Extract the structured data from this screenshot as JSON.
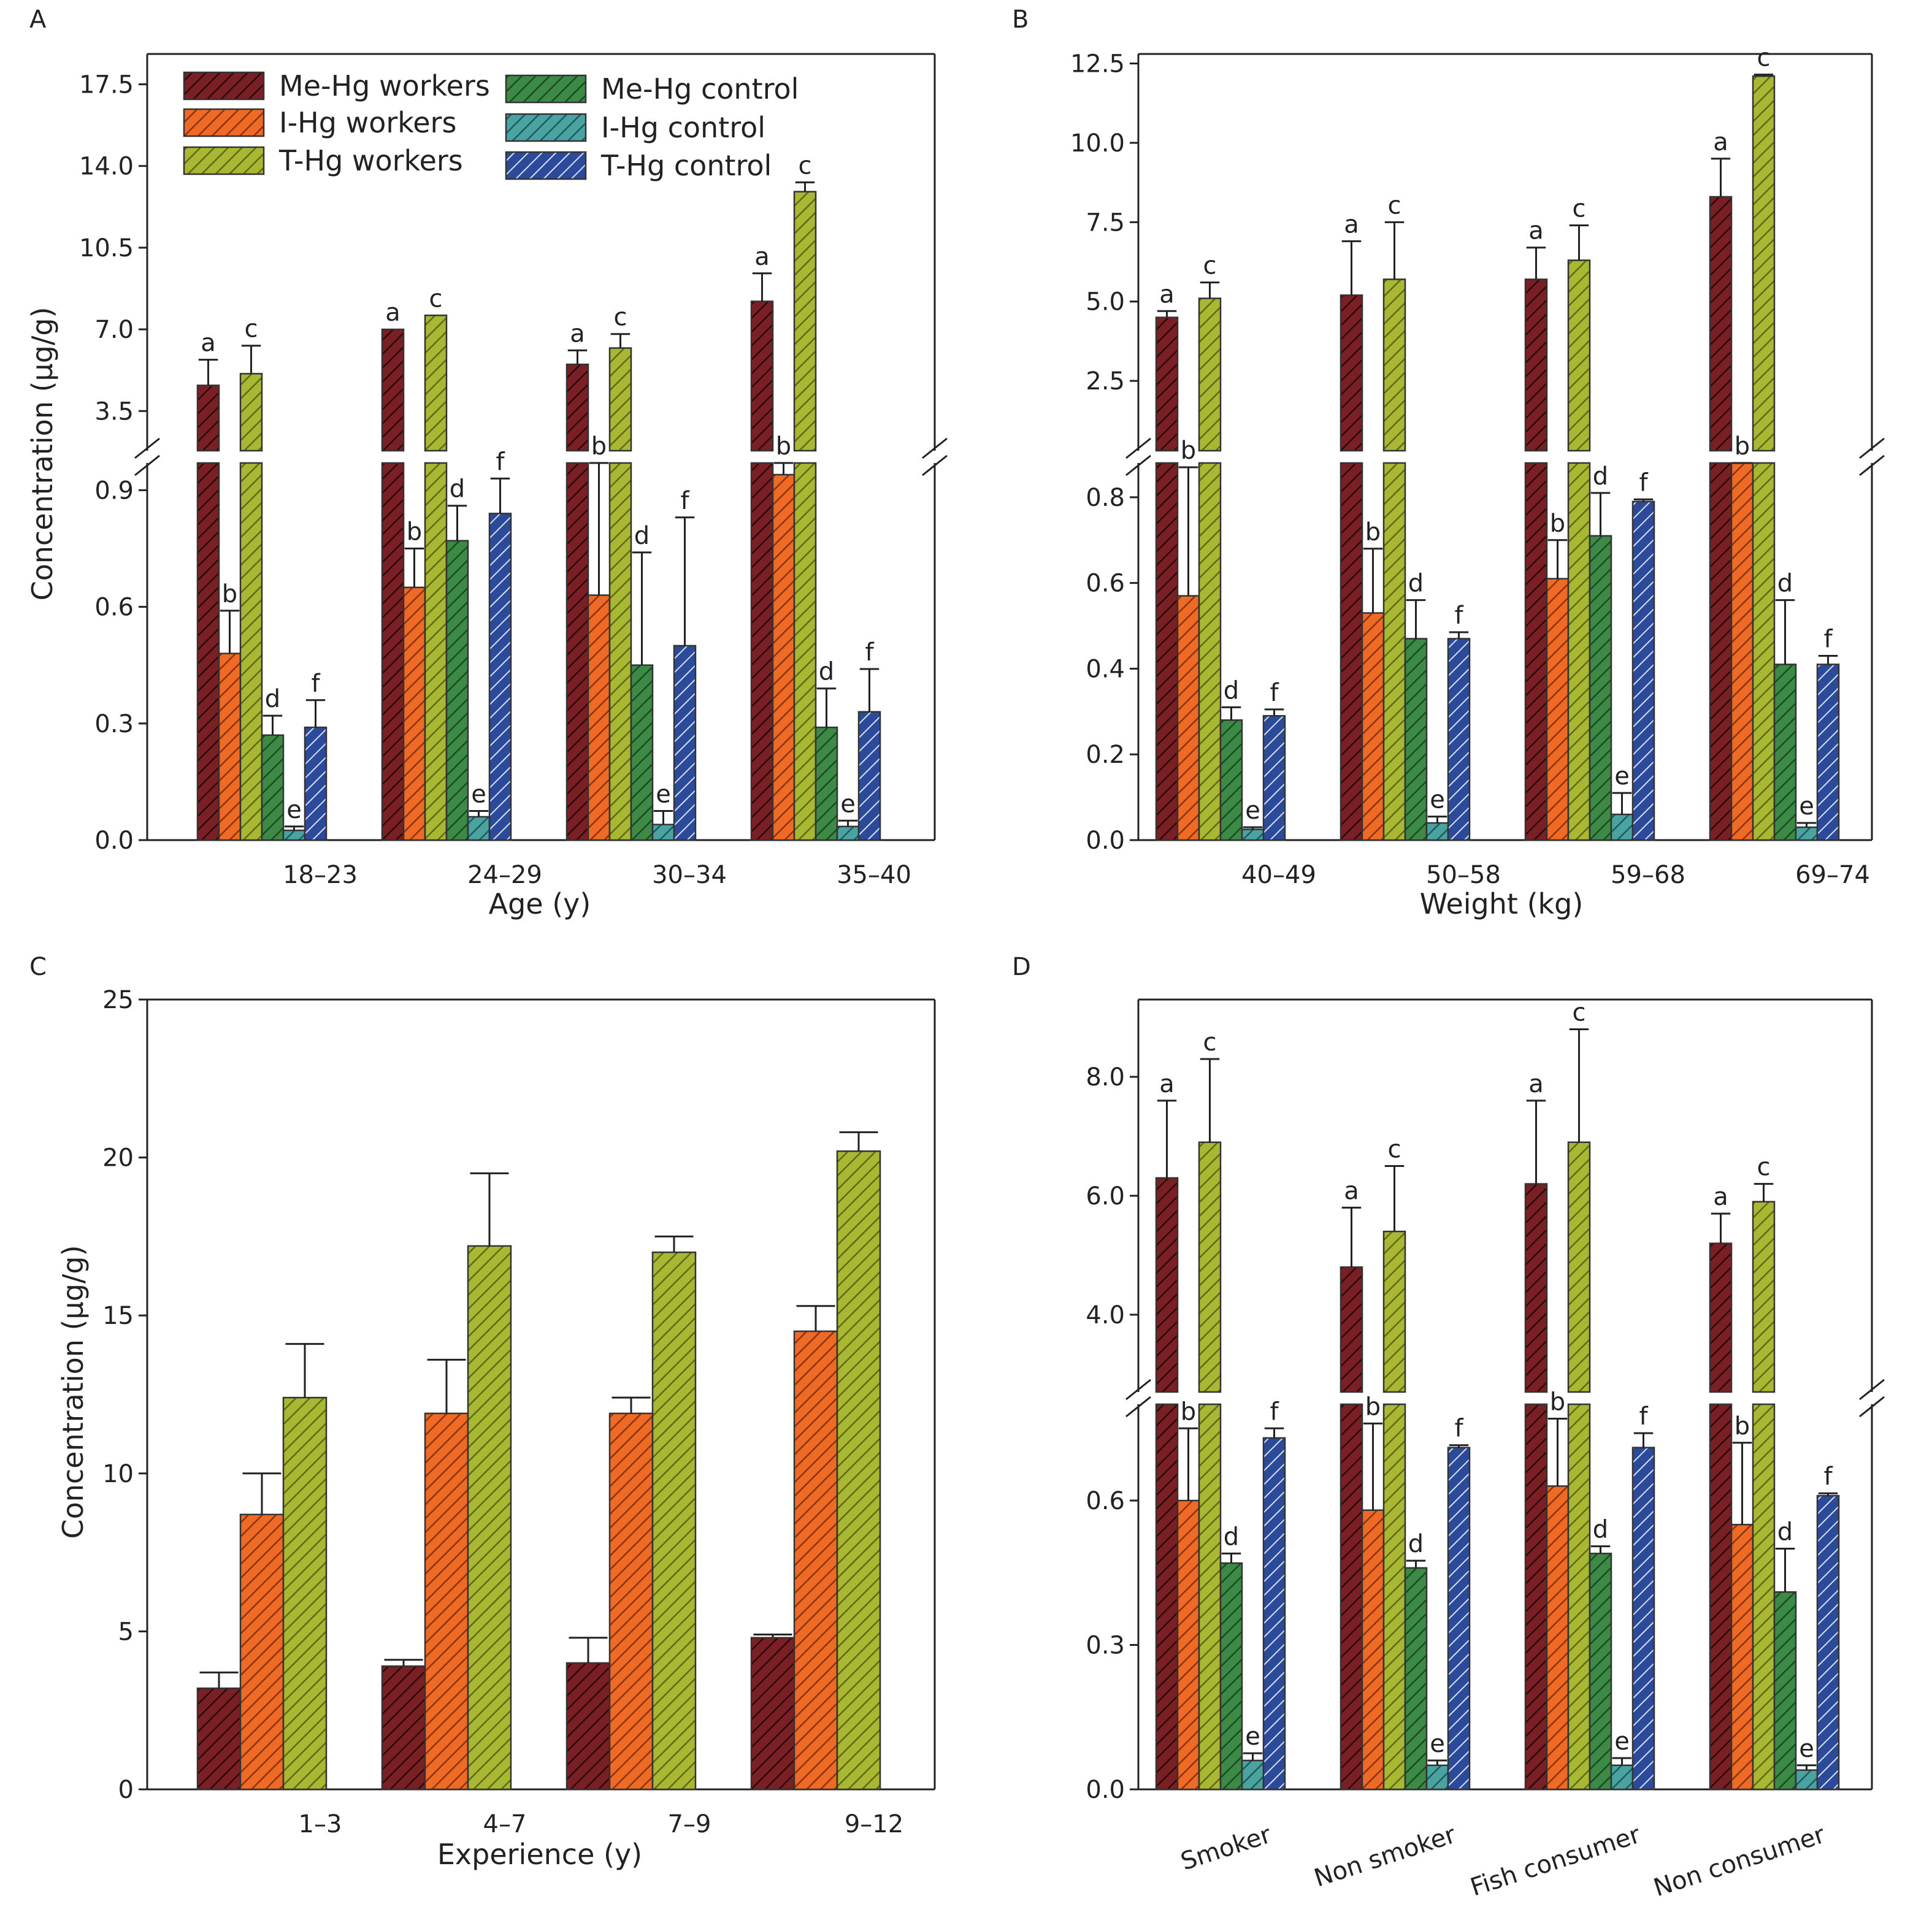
{
  "chart_data": [
    {
      "panel": "A",
      "type": "bar",
      "xlabel": "Age (y)",
      "ylabel": "Concentration (µg/g)",
      "categories": [
        "18–23",
        "24–29",
        "30–34",
        "35–40"
      ],
      "axis_break": true,
      "upper_ticks": [
        "3.5",
        "7.0",
        "10.5",
        "14.0",
        "17.5"
      ],
      "lower_ticks": [
        "0.0",
        "0.3",
        "0.6",
        "0.9"
      ],
      "series": [
        {
          "name": "Me-Hg workers",
          "color": "#7a1f24",
          "values": [
            4.6,
            7.0,
            5.5,
            8.2
          ],
          "errors": [
            1.1,
            0,
            0.6,
            1.2
          ],
          "letters": [
            "a",
            "a",
            "a",
            "a"
          ]
        },
        {
          "name": "I-Hg workers",
          "color": "#ee6a25",
          "values": [
            0.48,
            0.65,
            0.63,
            0.94
          ],
          "errors": [
            0.11,
            0.1,
            0.36,
            0.06
          ],
          "letters": [
            "b",
            "b",
            "b",
            "b"
          ]
        },
        {
          "name": "T-Hg workers",
          "color": "#a9b832",
          "values": [
            5.1,
            7.6,
            6.2,
            12.9
          ],
          "errors": [
            1.2,
            0,
            0.6,
            0.4
          ],
          "letters": [
            "c",
            "c",
            "c",
            "c"
          ]
        },
        {
          "name": "Me-Hg control",
          "color": "#3c8a46",
          "values": [
            0.27,
            0.77,
            0.45,
            0.29
          ],
          "errors": [
            0.05,
            0.09,
            0.29,
            0.1
          ],
          "letters": [
            "d",
            "d",
            "d",
            "d"
          ]
        },
        {
          "name": "I-Hg control",
          "color": "#4aa3a1",
          "values": [
            0.025,
            0.06,
            0.04,
            0.035
          ],
          "errors": [
            0.01,
            0.015,
            0.035,
            0.015
          ],
          "letters": [
            "e",
            "e",
            "e",
            "e"
          ]
        },
        {
          "name": "T-Hg control",
          "color": "#2c4a9a",
          "values": [
            0.29,
            0.84,
            0.5,
            0.33
          ],
          "errors": [
            0.07,
            0.09,
            0.33,
            0.11
          ],
          "letters": [
            "f",
            "f",
            "f",
            "f"
          ]
        }
      ]
    },
    {
      "panel": "B",
      "type": "bar",
      "xlabel": "Weight (kg)",
      "ylabel": "",
      "categories": [
        "40–49",
        "50–58",
        "59–68",
        "69–74"
      ],
      "axis_break": true,
      "upper_ticks": [
        "2.5",
        "5.0",
        "7.5",
        "10.0",
        "12.5"
      ],
      "lower_ticks": [
        "0.0",
        "0.2",
        "0.4",
        "0.6",
        "0.8"
      ],
      "series": [
        {
          "name": "Me-Hg workers",
          "values": [
            4.5,
            5.2,
            5.7,
            8.3
          ],
          "errors": [
            0.2,
            1.7,
            1.0,
            1.2
          ],
          "letters": [
            "a",
            "a",
            "a",
            "a"
          ]
        },
        {
          "name": "I-Hg workers",
          "values": [
            0.57,
            0.53,
            0.61,
            0.88
          ],
          "errors": [
            0.3,
            0.15,
            0.09,
            0.02
          ],
          "letters": [
            "b",
            "b",
            "b",
            "b"
          ]
        },
        {
          "name": "T-Hg workers",
          "values": [
            5.1,
            5.7,
            6.3,
            12.1
          ],
          "errors": [
            0.5,
            1.8,
            1.1,
            0.05
          ],
          "letters": [
            "c",
            "c",
            "c",
            "c"
          ]
        },
        {
          "name": "Me-Hg control",
          "values": [
            0.28,
            0.47,
            0.71,
            0.41
          ],
          "errors": [
            0.03,
            0.09,
            0.1,
            0.15
          ],
          "letters": [
            "d",
            "d",
            "d",
            "d"
          ]
        },
        {
          "name": "I-Hg control",
          "values": [
            0.025,
            0.04,
            0.06,
            0.03
          ],
          "errors": [
            0.005,
            0.015,
            0.05,
            0.01
          ],
          "letters": [
            "e",
            "e",
            "e",
            "e"
          ]
        },
        {
          "name": "T-Hg control",
          "values": [
            0.29,
            0.47,
            0.79,
            0.41
          ],
          "errors": [
            0.015,
            0.015,
            0.005,
            0.02
          ],
          "letters": [
            "f",
            "f",
            "f",
            "f"
          ]
        }
      ]
    },
    {
      "panel": "C",
      "type": "bar",
      "xlabel": "Experience (y)",
      "ylabel": "Concentration (µg/g)",
      "categories": [
        "1–3",
        "4–7",
        "7–9",
        "9–12"
      ],
      "axis_break": false,
      "ylim": [
        0,
        25
      ],
      "yticks": [
        "0",
        "5",
        "10",
        "15",
        "20",
        "25"
      ],
      "series": [
        {
          "name": "Me-Hg workers",
          "values": [
            3.2,
            3.9,
            4.0,
            4.8
          ],
          "errors": [
            0.5,
            0.2,
            0.8,
            0.1
          ]
        },
        {
          "name": "I-Hg workers",
          "values": [
            8.7,
            11.9,
            11.9,
            14.5
          ],
          "errors": [
            1.3,
            1.7,
            0.5,
            0.8
          ]
        },
        {
          "name": "T-Hg workers",
          "values": [
            12.4,
            17.2,
            17.0,
            20.2
          ],
          "errors": [
            1.7,
            2.3,
            0.5,
            0.6
          ]
        }
      ]
    },
    {
      "panel": "D",
      "type": "bar",
      "xlabel": "",
      "ylabel": "",
      "categories": [
        "Smoker",
        "Non smoker",
        "Fish consumer",
        "Non consumer"
      ],
      "axis_break": true,
      "upper_ticks": [
        "4.0",
        "6.0",
        "8.0"
      ],
      "lower_ticks": [
        "0.0",
        "0.3",
        "0.6"
      ],
      "series": [
        {
          "name": "Me-Hg workers",
          "values": [
            6.3,
            4.8,
            6.2,
            5.2
          ],
          "errors": [
            1.3,
            1.0,
            1.4,
            0.5
          ],
          "letters": [
            "a",
            "a",
            "a",
            "a"
          ]
        },
        {
          "name": "I-Hg workers",
          "values": [
            0.6,
            0.58,
            0.63,
            0.55
          ],
          "errors": [
            0.15,
            0.18,
            0.14,
            0.17
          ],
          "letters": [
            "b",
            "b",
            "b",
            "b"
          ]
        },
        {
          "name": "T-Hg workers",
          "values": [
            6.9,
            5.4,
            6.9,
            5.9
          ],
          "errors": [
            1.4,
            1.1,
            1.9,
            0.3
          ],
          "letters": [
            "c",
            "c",
            "c",
            "c"
          ]
        },
        {
          "name": "Me-Hg control",
          "values": [
            0.47,
            0.46,
            0.49,
            0.41
          ],
          "errors": [
            0.02,
            0.015,
            0.015,
            0.09
          ],
          "letters": [
            "d",
            "d",
            "d",
            "d"
          ]
        },
        {
          "name": "I-Hg control",
          "values": [
            0.06,
            0.05,
            0.05,
            0.04
          ],
          "errors": [
            0.015,
            0.01,
            0.015,
            0.01
          ],
          "letters": [
            "e",
            "e",
            "e",
            "e"
          ]
        },
        {
          "name": "T-Hg control",
          "values": [
            0.73,
            0.71,
            0.71,
            0.61
          ],
          "errors": [
            0.02,
            0.005,
            0.03,
            0.005
          ],
          "letters": [
            "f",
            "f",
            "f",
            "f"
          ]
        }
      ]
    }
  ],
  "legend": [
    {
      "label": "Me-Hg workers",
      "color": "#7a1f24"
    },
    {
      "label": "I-Hg workers",
      "color": "#ee6a25"
    },
    {
      "label": "T-Hg workers",
      "color": "#a9b832"
    },
    {
      "label": "Me-Hg control",
      "color": "#3c8a46"
    },
    {
      "label": "I-Hg control",
      "color": "#4aa3a1"
    },
    {
      "label": "T-Hg control",
      "color": "#2c4a9a"
    }
  ]
}
